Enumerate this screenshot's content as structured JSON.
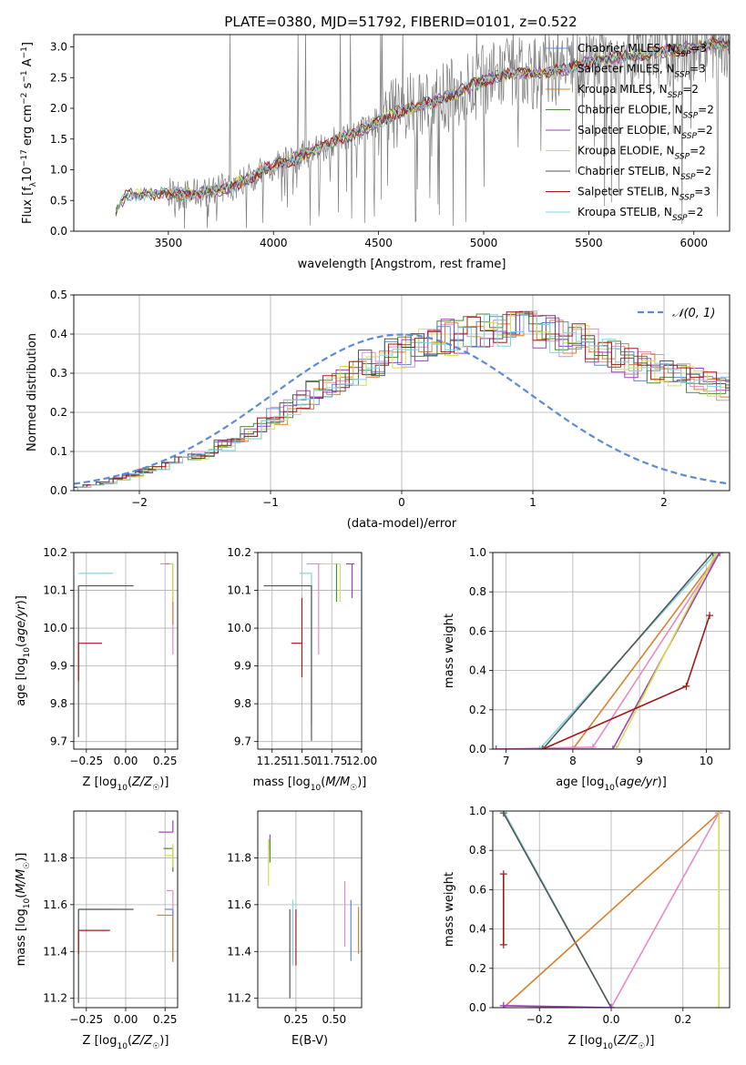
{
  "chart_data": [
    {
      "type": "line",
      "title": "PLATE=0380, MJD=51792, FIBERID=0101, z=0.522",
      "xlabel": "wavelength [Angstrom, rest frame]",
      "ylabel": "Flux [f_λ 10^-17 erg cm^-2 s^-1 A^-1]",
      "xlim": [
        3050,
        6170
      ],
      "ylim": [
        0,
        3.2
      ],
      "xticks": [
        "3500",
        "4000",
        "4500",
        "5000",
        "5500",
        "6000"
      ],
      "yticks": [
        "0.0",
        "0.5",
        "1.0",
        "1.5",
        "2.0",
        "2.5",
        "3.0"
      ],
      "legend": {
        "placement": "top-right",
        "entries": [
          {
            "pre": "Chabrier MILES, N",
            "val": "=3",
            "color": "#5b8ad8"
          },
          {
            "pre": "Salpeter MILES, N",
            "val": "=3",
            "color": "#e58ac7"
          },
          {
            "pre": "Kroupa MILES, N",
            "val": "=2",
            "color": "#d9802c"
          },
          {
            "pre": "Chabrier ELODIE, N",
            "val": "=2",
            "color": "#4c8a3c"
          },
          {
            "pre": "Salpeter ELODIE, N",
            "val": "=2",
            "color": "#a13fbf"
          },
          {
            "pre": "Kroupa ELODIE, N",
            "val": "=2",
            "color": "#d4df4e"
          },
          {
            "pre": "Chabrier STELIB, N",
            "val": "=2",
            "color": "#555555"
          },
          {
            "pre": "Salpeter STELIB, N",
            "val": "=3",
            "color": "#a31818"
          },
          {
            "pre": "Kroupa STELIB, N",
            "val": "=2",
            "color": "#7fd4e0"
          }
        ],
        "subscript": "SSP"
      },
      "series_note": "data spectrum grey; model spectra colored",
      "spectrum_anchors": {
        "x": [
          3250,
          3300,
          3400,
          3500,
          3600,
          3700,
          3800,
          3900,
          4000,
          4100,
          4200,
          4300,
          4400,
          4500,
          4600,
          4700,
          4800,
          4900,
          5000,
          5100,
          5200,
          5300,
          5400,
          5500,
          5600,
          5700,
          5800,
          5900,
          6000,
          6100
        ],
        "model": [
          0.35,
          0.58,
          0.6,
          0.62,
          0.6,
          0.65,
          0.72,
          0.9,
          1.05,
          1.18,
          1.32,
          1.48,
          1.62,
          1.78,
          1.95,
          2.05,
          2.15,
          2.3,
          2.45,
          2.55,
          2.58,
          2.6,
          2.65,
          2.75,
          2.8,
          2.85,
          2.9,
          2.95,
          3.0,
          3.05
        ]
      }
    },
    {
      "type": "area",
      "xlabel": "(data-model)/error",
      "ylabel": "Normed distribution",
      "xlim": [
        -2.5,
        2.5
      ],
      "ylim": [
        0,
        0.5
      ],
      "xticks": [
        "−2",
        "−1",
        "0",
        "1",
        "2"
      ],
      "yticks": [
        "0.0",
        "0.1",
        "0.2",
        "0.3",
        "0.4",
        "0.5"
      ],
      "legend": {
        "placement": "top-right",
        "entries": [
          {
            "label": "𝒩(0, 1)",
            "color": "#5b8ad8"
          }
        ]
      },
      "bin_width": 0.1,
      "hist_profile": [
        0.01,
        0.015,
        0.02,
        0.03,
        0.04,
        0.05,
        0.06,
        0.07,
        0.08,
        0.09,
        0.1,
        0.115,
        0.13,
        0.15,
        0.17,
        0.19,
        0.21,
        0.23,
        0.25,
        0.27,
        0.29,
        0.305,
        0.32,
        0.335,
        0.35,
        0.36,
        0.37,
        0.38,
        0.39,
        0.4,
        0.41,
        0.415,
        0.42,
        0.42,
        0.415,
        0.41,
        0.4,
        0.39,
        0.38,
        0.37,
        0.355,
        0.34,
        0.33,
        0.32,
        0.31,
        0.3,
        0.29,
        0.28,
        0.27,
        0.26,
        0.25,
        0.24,
        0.23,
        0.22,
        0.21,
        0.195,
        0.18,
        0.165,
        0.15,
        0.135,
        0.12,
        0.105,
        0.09,
        0.08,
        0.07,
        0.06,
        0.05,
        0.045,
        0.04,
        0.035,
        0.03
      ],
      "hist_profile_start": -2.5
    },
    {
      "type": "scatter",
      "xlabel": "Z [log10(Z/Z☉)]",
      "ylabel": "age [log10(age/yr)]",
      "xlim": [
        -0.33,
        0.33
      ],
      "ylim": [
        9.68,
        10.2
      ],
      "xticks": [
        {
          "v": -0.25,
          "t": "−0.25"
        },
        {
          "v": 0,
          "t": "0.00"
        },
        {
          "v": 0.25,
          "t": "0.25"
        }
      ],
      "yticks": [
        {
          "v": 9.7,
          "t": "9.7"
        },
        {
          "v": 9.8,
          "t": "9.8"
        },
        {
          "v": 9.9,
          "t": "9.9"
        },
        {
          "v": 10.0,
          "t": "10.0"
        },
        {
          "v": 10.1,
          "t": "10.1"
        },
        {
          "v": 10.2,
          "t": "10.2"
        }
      ],
      "points": [
        {
          "x": -0.3,
          "y": 10.145,
          "xerr": [
            0,
            0.22
          ],
          "yerr": [
            0,
            0
          ],
          "color": "#7fd4e0"
        },
        {
          "x": -0.3,
          "y": 10.112,
          "xerr": [
            0,
            0.35
          ],
          "yerr": [
            0.4,
            0
          ],
          "color": "#555555"
        },
        {
          "x": -0.3,
          "y": 9.96,
          "xerr": [
            0,
            0.15
          ],
          "yerr": [
            0.1,
            0
          ],
          "color": "#a31818"
        },
        {
          "x": 0.3,
          "y": 10.17,
          "xerr": [
            0.08,
            0
          ],
          "yerr": [
            0.24,
            0
          ],
          "color": "#e58ac7"
        },
        {
          "x": 0.3,
          "y": 10.17,
          "xerr": [
            0.05,
            0
          ],
          "yerr": [
            0.16,
            0
          ],
          "color": "#d9802c"
        },
        {
          "x": 0.3,
          "y": 10.17,
          "xerr": [
            0.02,
            0
          ],
          "yerr": [
            0.1,
            0
          ],
          "color": "#d4df4e"
        }
      ]
    },
    {
      "type": "scatter",
      "xlabel": "mass [log10(M/M☉)]",
      "xlim": [
        11.13,
        12.0
      ],
      "ylim": [
        9.68,
        10.2
      ],
      "xticks": [
        {
          "v": 11.25,
          "t": "11.25"
        },
        {
          "v": 11.5,
          "t": "11.50"
        },
        {
          "v": 11.75,
          "t": "11.75"
        },
        {
          "v": 12.0,
          "t": "12.00"
        }
      ],
      "yticks": [
        {
          "v": 9.7,
          "t": "9.7"
        },
        {
          "v": 9.8,
          "t": "9.8"
        },
        {
          "v": 9.9,
          "t": "9.9"
        },
        {
          "v": 10.0,
          "t": "10.0"
        },
        {
          "v": 10.1,
          "t": "10.1"
        },
        {
          "v": 10.2,
          "t": "10.2"
        }
      ],
      "points": [
        {
          "x": 11.58,
          "y": 10.145,
          "xerr": [
            0.1,
            0
          ],
          "yerr": [
            0.4,
            0
          ],
          "color": "#7fd4e0"
        },
        {
          "x": 11.58,
          "y": 10.112,
          "xerr": [
            0.4,
            0
          ],
          "yerr": [
            0.41,
            0
          ],
          "color": "#555555"
        },
        {
          "x": 11.5,
          "y": 9.96,
          "xerr": [
            0.09,
            0
          ],
          "yerr": [
            0.09,
            0.12
          ],
          "color": "#a31818"
        },
        {
          "x": 11.64,
          "y": 10.17,
          "xerr": [
            0.1,
            0.04
          ],
          "yerr": [
            0.24,
            0
          ],
          "color": "#e58ac7"
        },
        {
          "x": 11.82,
          "y": 10.17,
          "xerr": [
            0.17,
            0
          ],
          "yerr": [
            0.1,
            0
          ],
          "color": "#d4df4e"
        },
        {
          "x": 11.92,
          "y": 10.17,
          "xerr": [
            0.05,
            0.02
          ],
          "yerr": [
            0.09,
            0
          ],
          "color": "#a13fbf"
        },
        {
          "x": 11.79,
          "y": 10.17,
          "xerr": [
            0,
            0
          ],
          "yerr": [
            0.1,
            0
          ],
          "color": "#4c8a3c"
        }
      ]
    },
    {
      "type": "line",
      "xlabel": "age [log10(age/yr)]",
      "ylabel": "mass weight",
      "xlim": [
        6.8,
        10.35
      ],
      "ylim": [
        0,
        1.0
      ],
      "xticks": [
        {
          "v": 7,
          "t": "7"
        },
        {
          "v": 8,
          "t": "8"
        },
        {
          "v": 9,
          "t": "9"
        },
        {
          "v": 10,
          "t": "10"
        }
      ],
      "yticks": [
        {
          "v": 0,
          "t": "0.0"
        },
        {
          "v": 0.2,
          "t": "0.2"
        },
        {
          "v": 0.4,
          "t": "0.4"
        },
        {
          "v": 0.6,
          "t": "0.6"
        },
        {
          "v": 0.8,
          "t": "0.8"
        },
        {
          "v": 1.0,
          "t": "1.0"
        }
      ],
      "series": [
        {
          "color": "#7fd4e0",
          "x": [
            7.5,
            10.15
          ],
          "y": [
            0,
            1.0
          ]
        },
        {
          "color": "#555555",
          "x": [
            7.55,
            10.1
          ],
          "y": [
            0,
            1.0
          ]
        },
        {
          "color": "#d9802c",
          "x": [
            8.0,
            10.2
          ],
          "y": [
            0,
            1.0
          ]
        },
        {
          "color": "#e58ac7",
          "x": [
            6.85,
            8.3,
            10.2
          ],
          "y": [
            0,
            0.01,
            1.0
          ]
        },
        {
          "color": "#a13fbf",
          "x": [
            6.85,
            8.6,
            10.2
          ],
          "y": [
            0,
            0,
            1.0
          ]
        },
        {
          "color": "#d4df4e",
          "x": [
            8.65,
            10.15
          ],
          "y": [
            0,
            1.0
          ]
        },
        {
          "color": "#a31818",
          "x": [
            7.55,
            9.7,
            10.05
          ],
          "y": [
            0,
            0.32,
            0.68
          ],
          "markers": true
        }
      ]
    },
    {
      "type": "scatter",
      "xlabel": "Z [log10(Z/Z☉)]",
      "ylabel": "mass [log10(M/M☉)]",
      "xlim": [
        -0.33,
        0.33
      ],
      "ylim": [
        11.16,
        12.0
      ],
      "xticks": [
        {
          "v": -0.25,
          "t": "−0.25"
        },
        {
          "v": 0,
          "t": "0.00"
        },
        {
          "v": 0.25,
          "t": "0.25"
        }
      ],
      "yticks": [
        {
          "v": 11.2,
          "t": "11.2"
        },
        {
          "v": 11.4,
          "t": "11.4"
        },
        {
          "v": 11.6,
          "t": "11.6"
        },
        {
          "v": 11.8,
          "t": "11.8"
        }
      ],
      "points": [
        {
          "x": -0.3,
          "y": 11.58,
          "xerr": [
            0,
            0.22
          ],
          "yerr": [
            0.4,
            0
          ],
          "color": "#7fd4e0"
        },
        {
          "x": -0.3,
          "y": 11.58,
          "xerr": [
            0,
            0.35
          ],
          "yerr": [
            0.4,
            0
          ],
          "color": "#555555"
        },
        {
          "x": -0.3,
          "y": 11.49,
          "xerr": [
            0,
            0.2
          ],
          "yerr": [
            0.1,
            0
          ],
          "color": "#a31818"
        },
        {
          "x": 0.3,
          "y": 11.91,
          "xerr": [
            0.09,
            0
          ],
          "yerr": [
            0,
            0.05
          ],
          "color": "#a13fbf"
        },
        {
          "x": 0.3,
          "y": 11.84,
          "xerr": [
            0.06,
            0
          ],
          "yerr": [
            0.1,
            0
          ],
          "color": "#4c8a3c"
        },
        {
          "x": 0.3,
          "y": 11.81,
          "xerr": [
            0.05,
            0
          ],
          "yerr": [
            0.05,
            0.05
          ],
          "color": "#d4df4e"
        },
        {
          "x": 0.3,
          "y": 11.66,
          "xerr": [
            0.04,
            0
          ],
          "yerr": [
            0.3,
            0
          ],
          "color": "#e58ac7"
        },
        {
          "x": 0.3,
          "y": 11.58,
          "xerr": [
            0.05,
            0
          ],
          "yerr": [
            0.2,
            0
          ],
          "color": "#5b8ad8"
        },
        {
          "x": 0.3,
          "y": 11.555,
          "xerr": [
            0.1,
            0
          ],
          "yerr": [
            0.2,
            0
          ],
          "color": "#d9802c"
        }
      ]
    },
    {
      "type": "scatter",
      "xlabel": "E(B-V)",
      "xlim": [
        0.0,
        0.68
      ],
      "ylim": [
        11.16,
        12.0
      ],
      "xticks": [
        {
          "v": 0.25,
          "t": "0.25"
        },
        {
          "v": 0.5,
          "t": "0.50"
        }
      ],
      "yticks": [
        {
          "v": 11.2,
          "t": "11.2"
        },
        {
          "v": 11.4,
          "t": "11.4"
        },
        {
          "v": 11.6,
          "t": "11.6"
        },
        {
          "v": 11.8,
          "t": "11.8"
        }
      ],
      "points": [
        {
          "x": 0.08,
          "y": 11.88,
          "yerr": [
            0.05,
            0.02
          ],
          "color": "#a13fbf"
        },
        {
          "x": 0.07,
          "y": 11.78,
          "yerr": [
            0.1,
            0.1
          ],
          "color": "#d4df4e"
        },
        {
          "x": 0.08,
          "y": 11.83,
          "yerr": [
            0.05,
            0.05
          ],
          "color": "#4c8a3c"
        },
        {
          "x": 0.21,
          "y": 11.4,
          "yerr": [
            0.2,
            0.18
          ],
          "color": "#555555"
        },
        {
          "x": 0.23,
          "y": 11.48,
          "yerr": [
            0.14,
            0.14
          ],
          "color": "#7fd4e0"
        },
        {
          "x": 0.25,
          "y": 11.46,
          "yerr": [
            0.12,
            0.12
          ],
          "color": "#a31818"
        },
        {
          "x": 0.57,
          "y": 11.56,
          "yerr": [
            0.14,
            0.14
          ],
          "color": "#e58ac7"
        },
        {
          "x": 0.61,
          "y": 11.49,
          "yerr": [
            0.13,
            0.13
          ],
          "color": "#5b8ad8"
        },
        {
          "x": 0.66,
          "y": 11.49,
          "yerr": [
            0.1,
            0.1
          ],
          "color": "#d9802c"
        }
      ]
    },
    {
      "type": "line",
      "xlabel": "Z [log10(Z/Z☉)]",
      "ylabel": "mass weight",
      "xlim": [
        -0.33,
        0.33
      ],
      "ylim": [
        0,
        1.0
      ],
      "xticks": [
        {
          "v": -0.2,
          "t": "−0.2"
        },
        {
          "v": 0,
          "t": "0.0"
        },
        {
          "v": 0.2,
          "t": "0.2"
        }
      ],
      "yticks": [
        {
          "v": 0,
          "t": "0.0"
        },
        {
          "v": 0.2,
          "t": "0.2"
        },
        {
          "v": 0.4,
          "t": "0.4"
        },
        {
          "v": 0.6,
          "t": "0.6"
        },
        {
          "v": 0.8,
          "t": "0.8"
        },
        {
          "v": 1.0,
          "t": "1.0"
        }
      ],
      "series": [
        {
          "color": "#7fd4e0",
          "x": [
            -0.3,
            0.0
          ],
          "y": [
            1.0,
            0
          ]
        },
        {
          "color": "#555555",
          "x": [
            -0.3,
            0.0
          ],
          "y": [
            0.99,
            0
          ]
        },
        {
          "color": "#d9802c",
          "x": [
            -0.3,
            0.3
          ],
          "y": [
            0.0,
            0.99
          ]
        },
        {
          "color": "#e58ac7",
          "x": [
            -0.3,
            0.0,
            0.3
          ],
          "y": [
            0.01,
            0,
            0.99
          ]
        },
        {
          "color": "#a13fbf",
          "x": [
            -0.3,
            0.0
          ],
          "y": [
            0.01,
            0
          ]
        },
        {
          "color": "#d4df4e",
          "x": [
            0.3,
            0.3
          ],
          "y": [
            0.0,
            1.0
          ]
        },
        {
          "color": "#a31818",
          "x": [
            -0.3,
            -0.3
          ],
          "y": [
            0.32,
            0.68
          ],
          "markers": true
        }
      ]
    }
  ]
}
